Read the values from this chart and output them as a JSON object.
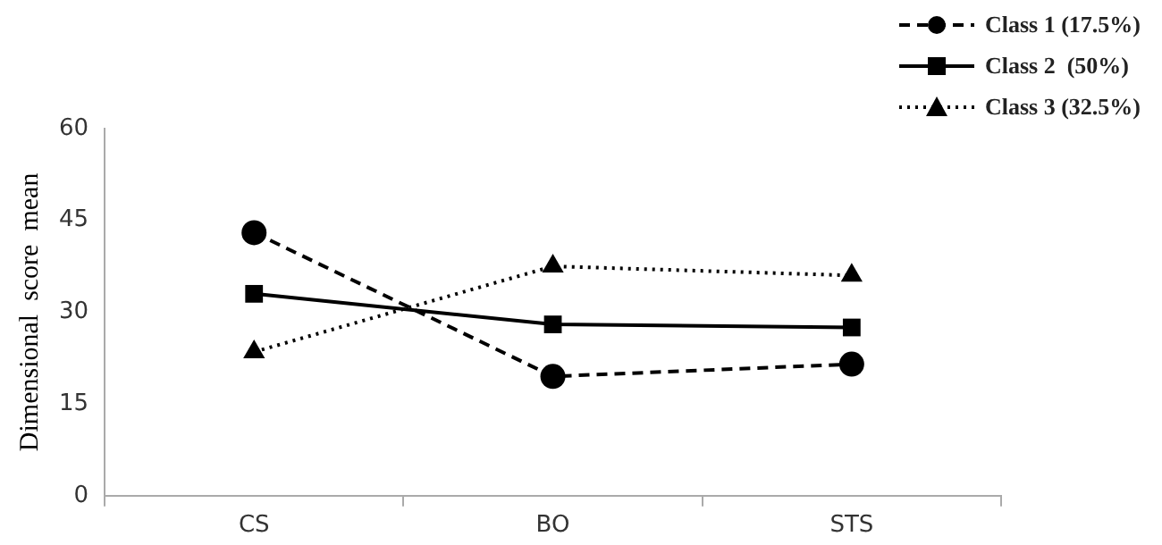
{
  "chart_data": {
    "type": "line",
    "ylabel": "Dimensional  score  mean",
    "categories": [
      "CS",
      "BO",
      "STS"
    ],
    "ylim": [
      0,
      60
    ],
    "yticks": [
      0,
      15,
      30,
      45,
      60
    ],
    "grid": false,
    "legend": "top right",
    "series": [
      {
        "name": "Class 1 (17.5%)",
        "color": "#000000",
        "values": [
          43,
          19.5,
          21.5
        ],
        "marker": "circle",
        "line_style": "dashed"
      },
      {
        "name": "Class 2  (50%)",
        "color": "#000000",
        "values": [
          33,
          28,
          27.5
        ],
        "marker": "square",
        "line_style": "solid"
      },
      {
        "name": "Class 3 (32.5%)",
        "color": "#000000",
        "values": [
          23.5,
          37.5,
          36
        ],
        "marker": "triangle",
        "line_style": "dotted"
      }
    ]
  }
}
